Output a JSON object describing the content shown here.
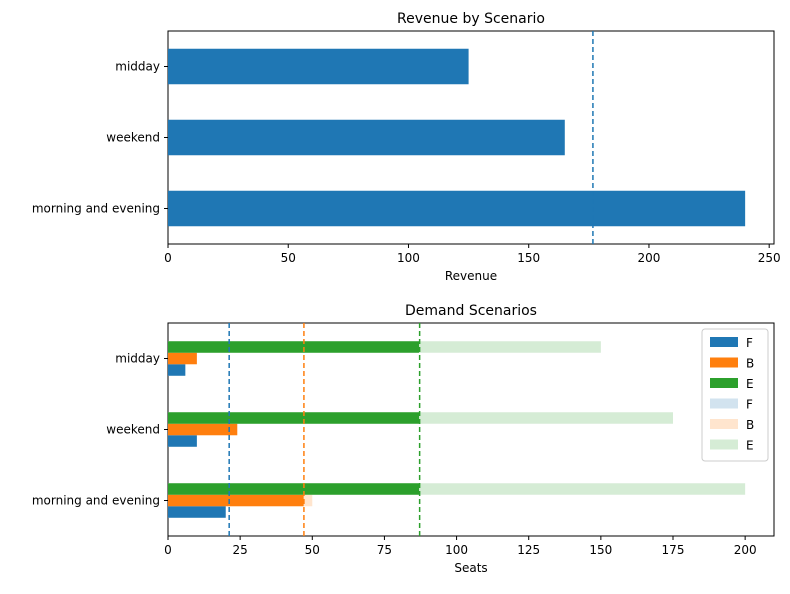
{
  "chart_data": [
    {
      "type": "bar",
      "orientation": "horizontal",
      "title": "Revenue by Scenario",
      "xlabel": "Revenue",
      "ylabel": "",
      "categories": [
        "morning and evening",
        "weekend",
        "midday"
      ],
      "series": [
        {
          "values": [
            240,
            165,
            125
          ],
          "color": "#1f77b4"
        }
      ],
      "reference_lines": [
        {
          "value": 176.7,
          "color": "#1f77b4",
          "style": "dashed"
        }
      ],
      "xlim": [
        0,
        252
      ],
      "xticks": [
        0,
        50,
        100,
        150,
        200,
        250
      ],
      "grid": false,
      "legend": null
    },
    {
      "type": "bar",
      "orientation": "horizontal",
      "title": "Demand Scenarios",
      "xlabel": "Seats",
      "ylabel": "",
      "categories": [
        "morning and evening",
        "weekend",
        "midday"
      ],
      "series": [
        {
          "name": "F",
          "values": [
            20,
            10,
            6
          ],
          "color": "#1f77b4"
        },
        {
          "name": "B",
          "values": [
            47,
            24,
            10
          ],
          "color": "#ff7f0e"
        },
        {
          "name": "E",
          "values": [
            87,
            87,
            87
          ],
          "color": "#2ca02c"
        },
        {
          "name": "F",
          "values": [
            20,
            10,
            6
          ],
          "color": "#d2e3ef"
        },
        {
          "name": "B",
          "values": [
            50,
            24,
            10
          ],
          "color": "#ffe5ce"
        },
        {
          "name": "E",
          "values": [
            200,
            175,
            150
          ],
          "color": "#d5ecd5"
        }
      ],
      "reference_lines": [
        {
          "value": 21.2,
          "color": "#1f77b4",
          "style": "dashed"
        },
        {
          "value": 47.1,
          "color": "#ff7f0e",
          "style": "dashed"
        },
        {
          "value": 87.2,
          "color": "#2ca02c",
          "style": "dashed"
        }
      ],
      "xlim": [
        0,
        210
      ],
      "xticks": [
        0,
        25,
        50,
        75,
        100,
        125,
        150,
        175,
        200
      ],
      "grid": false,
      "legend": "upper right"
    }
  ]
}
